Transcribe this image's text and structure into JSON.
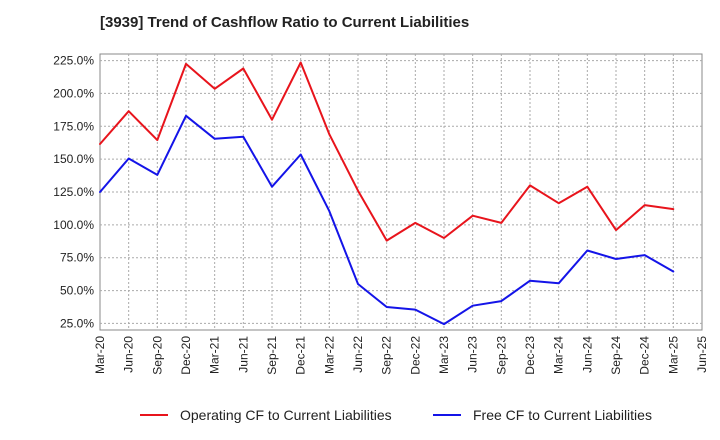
{
  "chart_data": {
    "type": "line",
    "title": "[3939]  Trend of Cashflow Ratio to Current Liabilities",
    "xlabel": "",
    "ylabel": "",
    "ylim": [
      20,
      230
    ],
    "yticks": [
      25,
      50,
      75,
      100,
      125,
      150,
      175,
      200,
      225
    ],
    "ytick_labels": [
      "25.0%",
      "50.0%",
      "75.0%",
      "100.0%",
      "125.0%",
      "150.0%",
      "175.0%",
      "200.0%",
      "225.0%"
    ],
    "x": [
      "Mar-20",
      "Jun-20",
      "Sep-20",
      "Dec-20",
      "Mar-21",
      "Jun-21",
      "Sep-21",
      "Dec-21",
      "Mar-22",
      "Jun-22",
      "Sep-22",
      "Dec-22",
      "Mar-23",
      "Jun-23",
      "Sep-23",
      "Dec-23",
      "Mar-24",
      "Jun-24",
      "Sep-24",
      "Dec-24",
      "Mar-25",
      "Jun-25"
    ],
    "grid": true,
    "legend_position": "bottom",
    "series": [
      {
        "name": "Operating CF to Current Liabilities",
        "color": "#e8141c",
        "values": [
          161.5,
          186.5,
          164.5,
          222.5,
          203.5,
          219.0,
          180.0,
          223.5,
          169.0,
          126.0,
          88.0,
          101.5,
          90.0,
          107.0,
          101.5,
          130.0,
          116.5,
          129.0,
          96.0,
          115.0,
          112.0,
          null
        ]
      },
      {
        "name": "Free CF to Current Liabilities",
        "color": "#1414e8",
        "values": [
          125.0,
          150.5,
          138.0,
          183.0,
          165.5,
          167.0,
          129.0,
          153.5,
          110.5,
          55.0,
          37.5,
          35.5,
          24.5,
          38.5,
          42.0,
          57.5,
          55.5,
          80.5,
          74.0,
          77.0,
          64.5,
          null
        ]
      }
    ]
  }
}
